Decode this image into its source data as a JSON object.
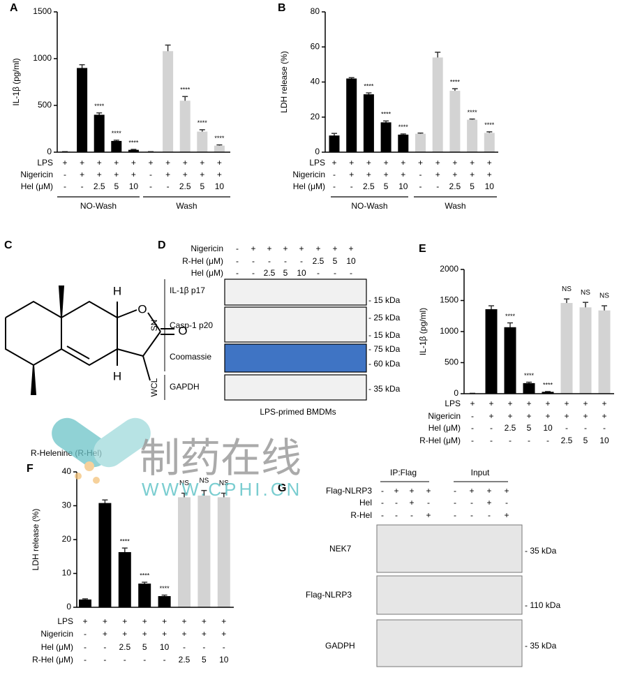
{
  "chart_data": [
    {
      "panel": "A",
      "type": "bar",
      "ylabel": "IL-1β (pg/ml)",
      "ylim": [
        0,
        1500
      ],
      "yticks": [
        0,
        500,
        1000,
        1500
      ],
      "values": [
        5,
        900,
        400,
        120,
        25,
        5,
        1080,
        550,
        220,
        70
      ],
      "errors": [
        0,
        35,
        20,
        8,
        5,
        0,
        65,
        45,
        20,
        8
      ],
      "colors": [
        "#000000",
        "#000000",
        "#000000",
        "#000000",
        "#000000",
        "#d3d3d3",
        "#d3d3d3",
        "#d3d3d3",
        "#d3d3d3",
        "#d3d3d3"
      ],
      "annotations": [
        null,
        null,
        "****",
        "****",
        "****",
        null,
        null,
        "****",
        "****",
        "****"
      ],
      "conditions": [
        {
          "name": "LPS",
          "values": [
            "+",
            "+",
            "+",
            "+",
            "+",
            "+",
            "+",
            "+",
            "+",
            "+"
          ]
        },
        {
          "name": "Nigericin",
          "values": [
            "-",
            "+",
            "+",
            "+",
            "+",
            "-",
            "+",
            "+",
            "+",
            "+"
          ]
        },
        {
          "name": "Hel (μM)",
          "values": [
            "-",
            "-",
            "2.5",
            "5",
            "10",
            "-",
            "-",
            "2.5",
            "5",
            "10"
          ]
        }
      ],
      "groups": [
        "NO-Wash",
        "Wash"
      ]
    },
    {
      "panel": "B",
      "type": "bar",
      "ylabel": "LDH release (%)",
      "ylim": [
        0,
        80
      ],
      "yticks": [
        0,
        20,
        40,
        60,
        80
      ],
      "values": [
        9.5,
        42,
        33,
        17,
        10,
        10.5,
        54,
        35,
        18.5,
        11
      ],
      "errors": [
        1.2,
        0.5,
        0.8,
        0.8,
        0.4,
        0.4,
        3,
        1.2,
        0.4,
        0.6
      ],
      "colors": [
        "#000000",
        "#000000",
        "#000000",
        "#000000",
        "#000000",
        "#d3d3d3",
        "#d3d3d3",
        "#d3d3d3",
        "#d3d3d3",
        "#d3d3d3"
      ],
      "annotations": [
        null,
        null,
        "****",
        "****",
        "****",
        null,
        null,
        "****",
        "****",
        "****"
      ],
      "conditions": [
        {
          "name": "LPS",
          "values": [
            "+",
            "+",
            "+",
            "+",
            "+",
            "+",
            "+",
            "+",
            "+",
            "+"
          ]
        },
        {
          "name": "Nigericin",
          "values": [
            "-",
            "+",
            "+",
            "+",
            "+",
            "-",
            "+",
            "+",
            "+",
            "+"
          ]
        },
        {
          "name": "Hel (μM)",
          "values": [
            "-",
            "-",
            "2.5",
            "5",
            "10",
            "-",
            "-",
            "2.5",
            "5",
            "10"
          ]
        }
      ],
      "groups": [
        "NO-Wash",
        "Wash"
      ]
    },
    {
      "panel": "E",
      "type": "bar",
      "ylabel": "IL-1β (pg/ml)",
      "ylim": [
        0,
        2000
      ],
      "yticks": [
        0,
        500,
        1000,
        1500,
        2000
      ],
      "values": [
        5,
        1360,
        1070,
        170,
        30,
        1460,
        1390,
        1340
      ],
      "errors": [
        0,
        55,
        70,
        15,
        5,
        65,
        80,
        75
      ],
      "colors": [
        "#000000",
        "#000000",
        "#000000",
        "#000000",
        "#000000",
        "#d3d3d3",
        "#d3d3d3",
        "#d3d3d3"
      ],
      "annotations": [
        null,
        null,
        "****",
        "****",
        "****",
        "NS",
        "NS",
        "NS"
      ],
      "conditions": [
        {
          "name": "LPS",
          "values": [
            "+",
            "+",
            "+",
            "+",
            "+",
            "+",
            "+",
            "+"
          ]
        },
        {
          "name": "Nigericin",
          "values": [
            "-",
            "+",
            "+",
            "+",
            "+",
            "+",
            "+",
            "+"
          ]
        },
        {
          "name": "Hel (μM)",
          "values": [
            "-",
            "-",
            "2.5",
            "5",
            "10",
            "-",
            "-",
            "-"
          ]
        },
        {
          "name": "R-Hel (μM)",
          "values": [
            "-",
            "-",
            "-",
            "-",
            "-",
            "2.5",
            "5",
            "10"
          ]
        }
      ]
    },
    {
      "panel": "F",
      "type": "bar",
      "ylabel": "LDH release (%)",
      "ylim": [
        0,
        40
      ],
      "yticks": [
        0,
        10,
        20,
        30,
        40
      ],
      "values": [
        2.3,
        30.8,
        16.3,
        7,
        3.3,
        32.5,
        33,
        32.5
      ],
      "errors": [
        0.2,
        0.9,
        1.2,
        0.4,
        0.3,
        1.2,
        1.5,
        1.2
      ],
      "colors": [
        "#000000",
        "#000000",
        "#000000",
        "#000000",
        "#000000",
        "#d3d3d3",
        "#d3d3d3",
        "#d3d3d3"
      ],
      "annotations": [
        null,
        null,
        "****",
        "****",
        "****",
        "NS",
        "NS",
        "NS"
      ],
      "conditions": [
        {
          "name": "LPS",
          "values": [
            "+",
            "+",
            "+",
            "+",
            "+",
            "+",
            "+",
            "+"
          ]
        },
        {
          "name": "Nigericin",
          "values": [
            "-",
            "+",
            "+",
            "+",
            "+",
            "+",
            "+",
            "+"
          ]
        },
        {
          "name": "Hel (μM)",
          "values": [
            "-",
            "-",
            "2.5",
            "5",
            "10",
            "-",
            "-",
            "-"
          ]
        },
        {
          "name": "R-Hel (μM)",
          "values": [
            "-",
            "-",
            "-",
            "-",
            "-",
            "2.5",
            "5",
            "10"
          ]
        }
      ]
    }
  ],
  "structure": {
    "panel": "C",
    "atoms": [
      "H",
      "O",
      "O",
      "H"
    ],
    "caption": "R-Helenine (R-Hel)"
  },
  "blot_d": {
    "panel": "D",
    "lanes": [
      {
        "name": "Nigericin",
        "values": [
          "-",
          "+",
          "+",
          "+",
          "+",
          "+",
          "+",
          "+"
        ]
      },
      {
        "name": "R-Hel (μM)",
        "values": [
          "-",
          "-",
          "-",
          "-",
          "-",
          "2.5",
          "5",
          "10"
        ]
      },
      {
        "name": "Hel (μM)",
        "values": [
          "-",
          "-",
          "2.5",
          "5",
          "10",
          "-",
          "-",
          "-"
        ]
      }
    ],
    "rows": [
      {
        "name": "IL-1β p17",
        "markers": [
          "- 15 kDa"
        ]
      },
      {
        "name": "Casp-1 p20",
        "markers": [
          "- 25 kDa",
          "- 15 kDa"
        ]
      },
      {
        "name": "Coomassie",
        "markers": [
          "- 75 kDa",
          "- 60 kDa"
        ]
      },
      {
        "name": "GAPDH",
        "markers": [
          "- 35 kDa"
        ]
      }
    ],
    "sections": [
      "SN",
      "WCL"
    ],
    "caption": "LPS-primed BMDMs"
  },
  "blot_g": {
    "panel": "G",
    "headers": [
      "IP:Flag",
      "Input"
    ],
    "lanes": [
      {
        "name": "Flag-NLRP3",
        "values": [
          "-",
          "+",
          "+",
          "+",
          "-",
          "+",
          "+",
          "+"
        ]
      },
      {
        "name": "Hel",
        "values": [
          "-",
          "-",
          "+",
          "-",
          "-",
          "-",
          "+",
          "-"
        ]
      },
      {
        "name": "R-Hel",
        "values": [
          "-",
          "-",
          "-",
          "+",
          "-",
          "-",
          "-",
          "+"
        ]
      }
    ],
    "rows": [
      {
        "name": "NEK7",
        "markers": [
          "- 35 kDa"
        ]
      },
      {
        "name": "Flag-NLRP3",
        "markers": [
          "- 110 kDa"
        ]
      },
      {
        "name": "GADPH",
        "markers": [
          "- 35 kDa"
        ]
      }
    ]
  },
  "watermark": {
    "title": "制药在线",
    "url": "WWW.CPHI.CN"
  }
}
